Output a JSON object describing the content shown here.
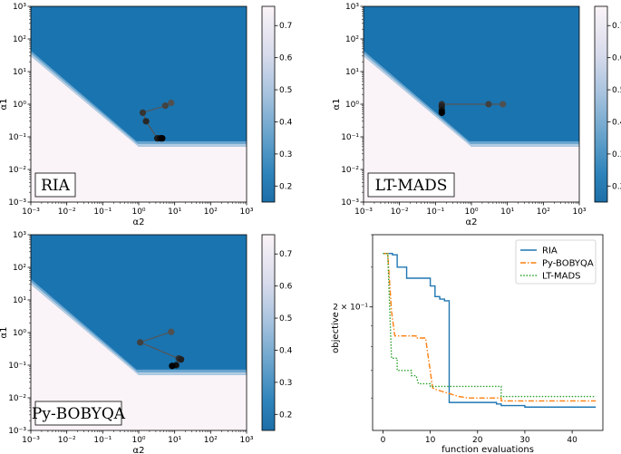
{
  "chart_data": [
    {
      "type": "heatmap",
      "title": "RIA",
      "xlabel": "α2",
      "ylabel": "α1",
      "xscale": "log",
      "yscale": "log",
      "xlim": [
        0.001,
        1000
      ],
      "ylim": [
        0.001,
        1000
      ],
      "x_ticks": [
        "10⁻³",
        "10⁻²",
        "10⁻¹",
        "10⁰",
        "10¹",
        "10²",
        "10³"
      ],
      "y_ticks": [
        "10⁻³",
        "10⁻²",
        "10⁻¹",
        "10⁰",
        "10¹",
        "10²",
        "10³"
      ],
      "colorbar": {
        "range": [
          0.15,
          0.76
        ],
        "ticks": [
          "0.2",
          "0.3",
          "0.4",
          "0.5",
          "0.6",
          "0.7"
        ]
      },
      "path": [
        [
          8,
          1.1
        ],
        [
          5.5,
          0.9
        ],
        [
          1.3,
          0.55
        ],
        [
          1.6,
          0.3
        ],
        [
          3.3,
          0.09
        ],
        [
          4,
          0.09
        ],
        [
          4.5,
          0.09
        ]
      ]
    },
    {
      "type": "heatmap",
      "title": "LT-MADS",
      "xlabel": "α2",
      "ylabel": "α1",
      "xscale": "log",
      "yscale": "log",
      "xlim": [
        0.001,
        1000
      ],
      "ylim": [
        0.001,
        1000
      ],
      "x_ticks": [
        "10⁻³",
        "10⁻²",
        "10⁻¹",
        "10⁰",
        "10¹",
        "10²",
        "10³"
      ],
      "y_ticks": [
        "10⁻³",
        "10⁻²",
        "10⁻¹",
        "10⁰",
        "10¹",
        "10²",
        "10³"
      ],
      "colorbar": {
        "range": [
          0.15,
          0.76
        ],
        "ticks": [
          "0.2",
          "0.3",
          "0.4",
          "0.5",
          "0.6",
          "0.7"
        ]
      },
      "path": [
        [
          7.5,
          1.0
        ],
        [
          3.0,
          1.0
        ],
        [
          0.15,
          1.0
        ],
        [
          0.15,
          0.85
        ],
        [
          0.15,
          0.65
        ],
        [
          0.15,
          0.55
        ]
      ]
    },
    {
      "type": "heatmap",
      "title": "Py-BOBYQA",
      "xlabel": "α2",
      "ylabel": "α1",
      "xscale": "log",
      "yscale": "log",
      "xlim": [
        0.001,
        1000
      ],
      "ylim": [
        0.001,
        1000
      ],
      "x_ticks": [
        "10⁻³",
        "10⁻²",
        "10⁻¹",
        "10⁰",
        "10¹",
        "10²",
        "10³"
      ],
      "y_ticks": [
        "10⁻³",
        "10⁻²",
        "10⁻¹",
        "10⁰",
        "10¹",
        "10²",
        "10³"
      ],
      "colorbar": {
        "range": [
          0.15,
          0.76
        ],
        "ticks": [
          "0.2",
          "0.3",
          "0.4",
          "0.5",
          "0.6",
          "0.7"
        ]
      },
      "path": [
        [
          8,
          1.05
        ],
        [
          1.1,
          0.5
        ],
        [
          13,
          0.16
        ],
        [
          15,
          0.15
        ],
        [
          11,
          0.1
        ],
        [
          8.5,
          0.095
        ]
      ]
    },
    {
      "type": "line",
      "title": "",
      "xlabel": "function evaluations",
      "ylabel": "objective",
      "yscale": "log",
      "xlim": [
        -2.2,
        46.5
      ],
      "ylim": [
        0.1,
        0.3
      ],
      "x_ticks": [
        0,
        10,
        20,
        30,
        40
      ],
      "y_tick_label": "2 × 10⁻¹",
      "y_tick_value": 0.2,
      "legend": "top-right",
      "series": [
        {
          "name": "RIA",
          "color": "#1f77b4",
          "style": "solid",
          "points": [
            [
              0,
              0.27
            ],
            [
              2,
              0.27
            ],
            [
              2,
              0.268
            ],
            [
              3,
              0.268
            ],
            [
              3,
              0.25
            ],
            [
              5,
              0.25
            ],
            [
              5,
              0.235
            ],
            [
              10,
              0.235
            ],
            [
              10,
              0.225
            ],
            [
              11,
              0.225
            ],
            [
              11,
              0.212
            ],
            [
              12,
              0.212
            ],
            [
              12,
              0.209
            ],
            [
              13,
              0.209
            ],
            [
              13,
              0.207
            ],
            [
              14,
              0.207
            ],
            [
              14,
              0.117
            ],
            [
              24,
              0.117
            ],
            [
              24,
              0.116
            ],
            [
              25,
              0.116
            ],
            [
              25,
              0.115
            ],
            [
              30,
              0.115
            ],
            [
              30,
              0.114
            ],
            [
              45,
              0.114
            ]
          ]
        },
        {
          "name": "Py-BOBYQA",
          "color": "#ff7f0e",
          "style": "dashdot",
          "points": [
            [
              0,
              0.27
            ],
            [
              1,
              0.27
            ],
            [
              1.8,
              0.195
            ],
            [
              2.5,
              0.17
            ],
            [
              7,
              0.17
            ],
            [
              7,
              0.168
            ],
            [
              9,
              0.168
            ],
            [
              10.5,
              0.127
            ],
            [
              11,
              0.126
            ],
            [
              13,
              0.124
            ],
            [
              16,
              0.121
            ],
            [
              18,
              0.12
            ],
            [
              25,
              0.12
            ],
            [
              25,
              0.118
            ],
            [
              45,
              0.118
            ]
          ]
        },
        {
          "name": "LT-MADS",
          "color": "#2ca02c",
          "style": "dotted",
          "points": [
            [
              0,
              0.27
            ],
            [
              1,
              0.27
            ],
            [
              1.8,
              0.15
            ],
            [
              3,
              0.15
            ],
            [
              3,
              0.14
            ],
            [
              6,
              0.14
            ],
            [
              6,
              0.136
            ],
            [
              7,
              0.136
            ],
            [
              7.5,
              0.13
            ],
            [
              10,
              0.13
            ],
            [
              10,
              0.128
            ],
            [
              25,
              0.128
            ],
            [
              25,
              0.121
            ],
            [
              45,
              0.121
            ]
          ]
        }
      ]
    }
  ]
}
